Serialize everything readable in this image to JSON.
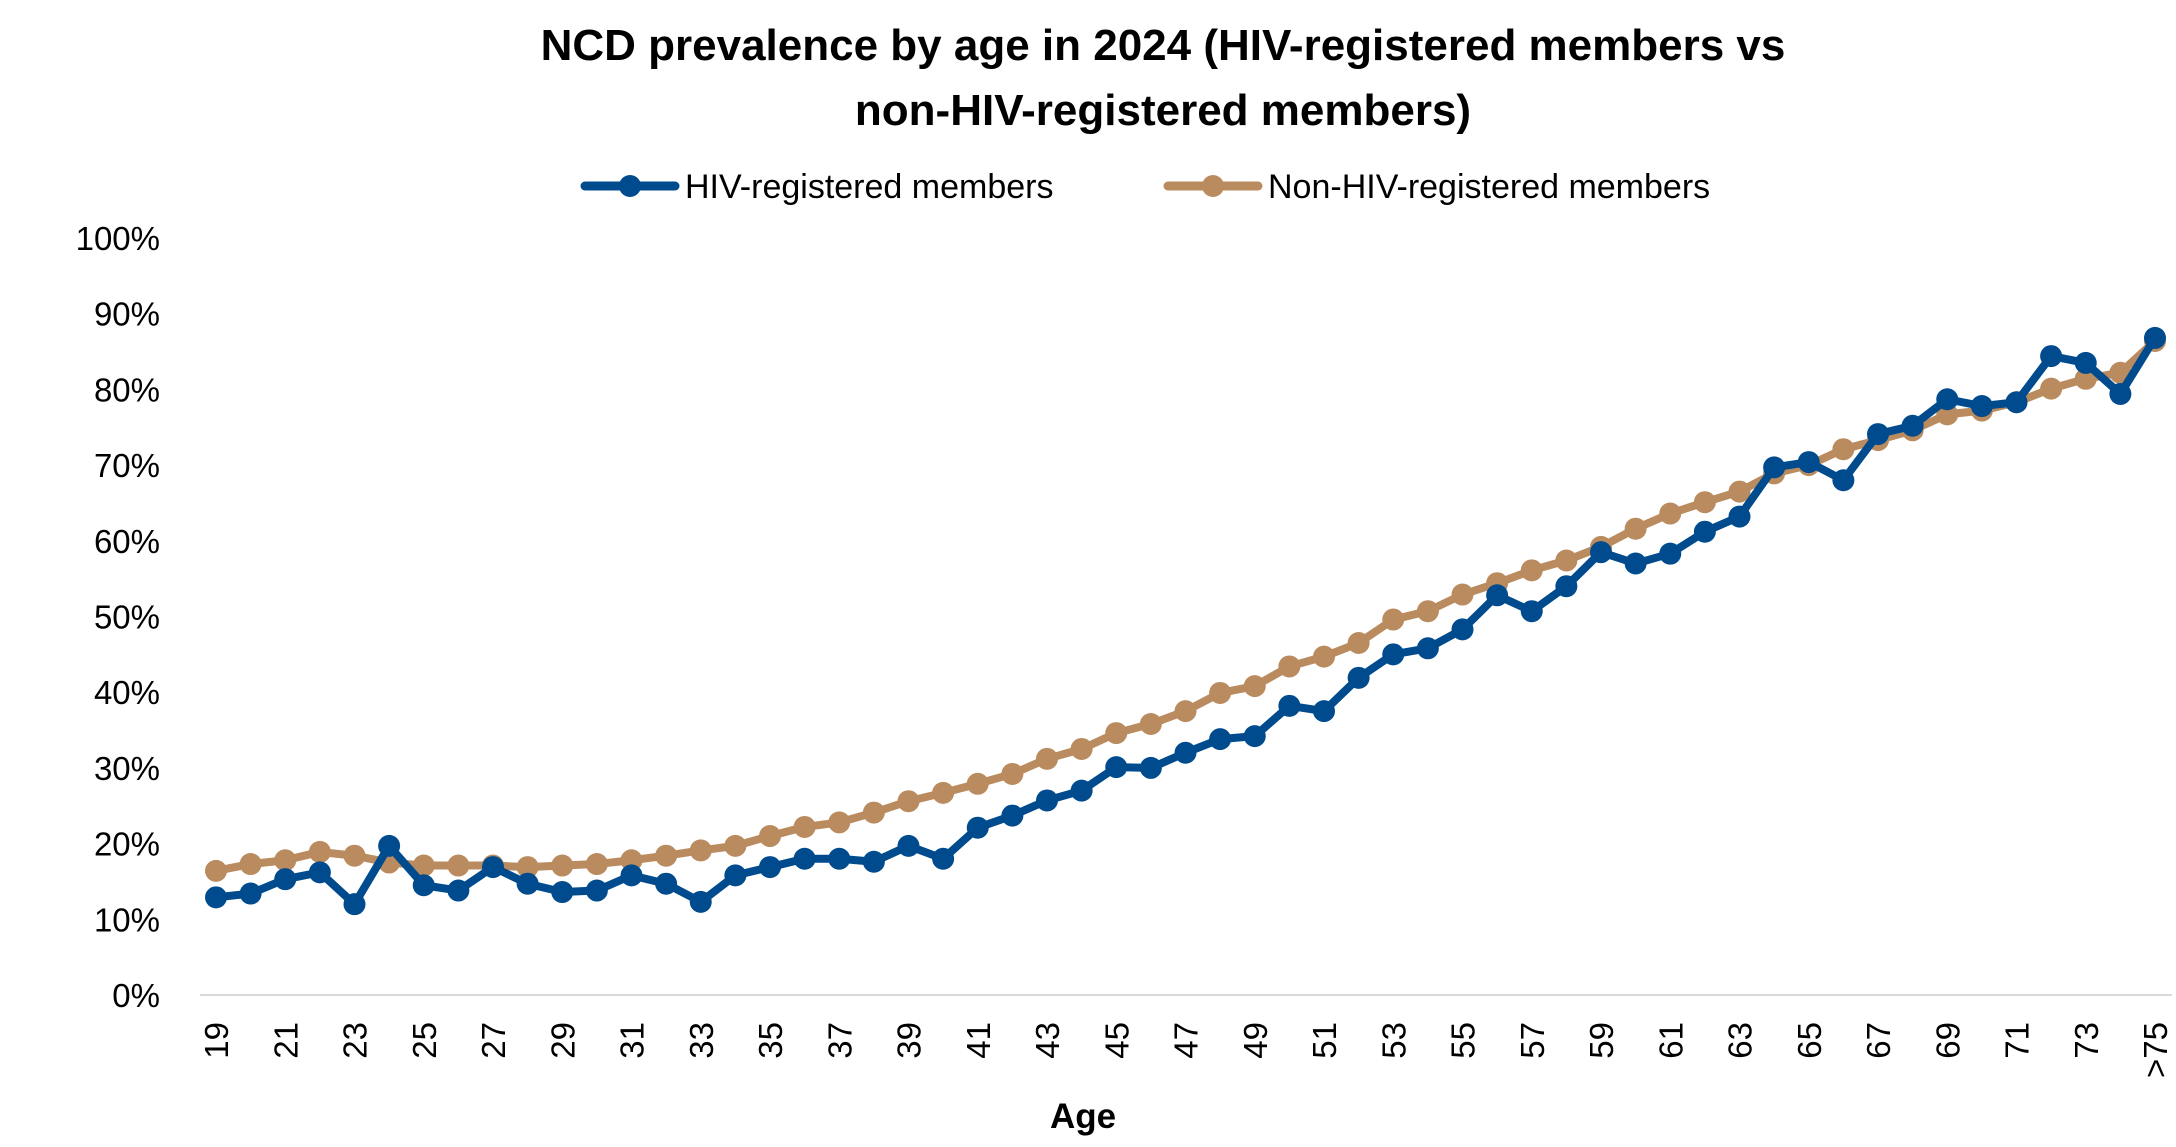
{
  "chart_data": {
    "type": "line",
    "title_lines": [
      "NCD prevalence by age in 2024  (HIV-registered members vs",
      "non-HIV-registered members)"
    ],
    "xlabel": "Age",
    "ylabel": "",
    "ylim": [
      0,
      100
    ],
    "y_ticks": [
      "0%",
      "10%",
      "20%",
      "30%",
      "40%",
      "50%",
      "60%",
      "70%",
      "80%",
      "90%",
      "100%"
    ],
    "y_unit": "%",
    "grid": false,
    "legend_position": "top",
    "categories": [
      "19",
      "20",
      "21",
      "22",
      "23",
      "24",
      "25",
      "26",
      "27",
      "28",
      "29",
      "30",
      "31",
      "32",
      "33",
      "34",
      "35",
      "36",
      "37",
      "38",
      "39",
      "40",
      "41",
      "42",
      "43",
      "44",
      "45",
      "46",
      "47",
      "48",
      "49",
      "50",
      "51",
      "52",
      "53",
      "54",
      "55",
      "56",
      "57",
      "58",
      "59",
      "60",
      "61",
      "62",
      "63",
      "64",
      "65",
      "66",
      "67",
      "68",
      "69",
      "70",
      "71",
      "72",
      "73",
      "74",
      ">75"
    ],
    "x_tick_labels": [
      "19",
      "21",
      "23",
      "25",
      "27",
      "29",
      "31",
      "33",
      "35",
      "37",
      "39",
      "41",
      "43",
      "45",
      "47",
      "49",
      "51",
      "53",
      "55",
      "57",
      "59",
      "61",
      "63",
      "65",
      "67",
      "69",
      "71",
      "73",
      ">75"
    ],
    "series": [
      {
        "name": "HIV-registered members",
        "color": "#004B8D",
        "values": [
          12.9,
          13.4,
          15.3,
          16.2,
          12.0,
          19.7,
          14.5,
          13.8,
          16.9,
          14.7,
          13.6,
          13.8,
          15.8,
          14.7,
          12.3,
          15.8,
          16.9,
          18.0,
          18.0,
          17.6,
          19.7,
          18.0,
          22.1,
          23.7,
          25.7,
          27.0,
          30.1,
          30.0,
          32.0,
          33.8,
          34.2,
          38.2,
          37.5,
          41.9,
          45.0,
          45.8,
          48.3,
          52.8,
          50.7,
          54.0,
          58.5,
          57.0,
          58.3,
          61.2,
          63.2,
          69.7,
          70.4,
          68.0,
          74.1,
          75.2,
          78.7,
          77.8,
          78.3,
          84.4,
          83.5,
          79.4,
          86.8
        ]
      },
      {
        "name": "Non-HIV-registered members",
        "color": "#B98B5E",
        "values": [
          16.4,
          17.3,
          17.8,
          18.9,
          18.4,
          17.5,
          17.1,
          17.1,
          17.1,
          16.9,
          17.1,
          17.3,
          17.8,
          18.4,
          19.1,
          19.7,
          21.0,
          22.2,
          22.8,
          24.1,
          25.6,
          26.7,
          27.9,
          29.2,
          31.2,
          32.5,
          34.6,
          35.8,
          37.5,
          39.9,
          40.8,
          43.4,
          44.7,
          46.5,
          49.6,
          50.7,
          52.9,
          54.4,
          56.1,
          57.4,
          59.2,
          61.6,
          63.6,
          65.1,
          66.5,
          68.9,
          70.0,
          72.1,
          73.3,
          74.6,
          76.7,
          77.2,
          78.3,
          80.1,
          81.4,
          82.2,
          86.4
        ]
      }
    ]
  }
}
